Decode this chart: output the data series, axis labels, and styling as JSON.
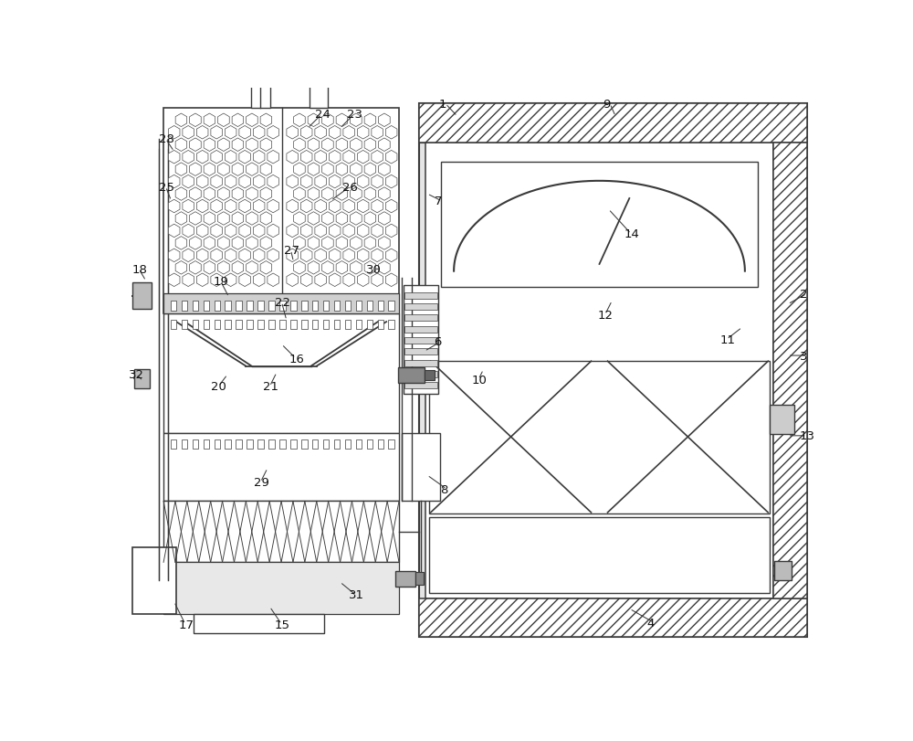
{
  "bg": "#ffffff",
  "lc": "#3a3a3a",
  "fw": 10.0,
  "fh": 8.12
}
